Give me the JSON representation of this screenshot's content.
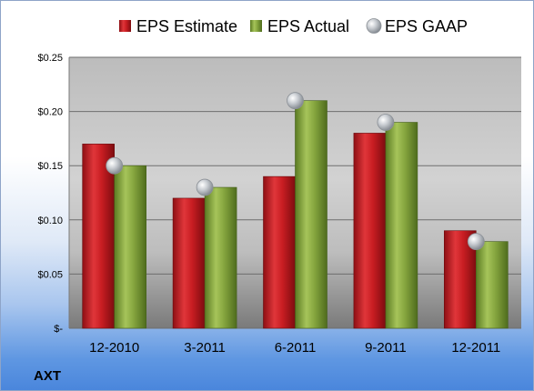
{
  "ticker": "AXT",
  "chart_data": {
    "type": "bar",
    "categories": [
      "12-2010",
      "3-2011",
      "6-2011",
      "9-2011",
      "12-2011"
    ],
    "series": [
      {
        "name": "EPS Estimate",
        "type": "bar",
        "color": "#c0191f",
        "values": [
          0.17,
          0.12,
          0.14,
          0.18,
          0.09
        ]
      },
      {
        "name": "EPS Actual",
        "type": "bar",
        "color": "#7ea13a",
        "values": [
          0.15,
          0.13,
          0.21,
          0.19,
          0.08
        ]
      },
      {
        "name": "EPS GAAP",
        "type": "marker",
        "color": "#b9bec4",
        "values": [
          0.15,
          0.13,
          0.21,
          0.19,
          0.08
        ]
      }
    ],
    "ylim": [
      0,
      0.25
    ],
    "yticks": [
      0,
      0.05,
      0.1,
      0.15,
      0.2,
      0.25
    ],
    "ytick_labels": [
      "$-",
      "$0.05",
      "$0.10",
      "$0.15",
      "$0.20",
      "$0.25"
    ],
    "grid": true,
    "legend_position": "top"
  }
}
